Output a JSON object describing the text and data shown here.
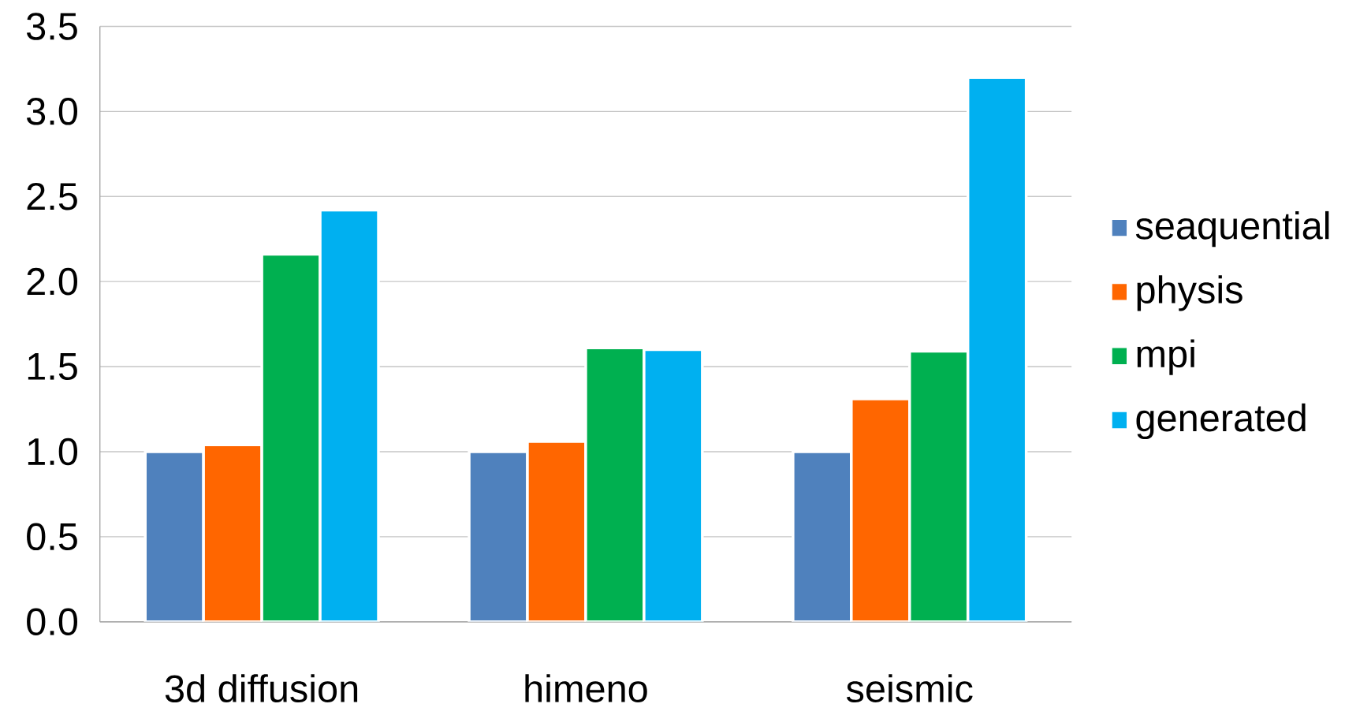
{
  "chart_data": {
    "type": "bar",
    "categories": [
      "3d diffusion",
      "himeno",
      "seismic"
    ],
    "series": [
      {
        "name": "seaquential",
        "color": "#4f81bd",
        "values": [
          1.0,
          1.0,
          1.0
        ]
      },
      {
        "name": "physis",
        "color": "#ff6600",
        "values": [
          1.04,
          1.06,
          1.31
        ]
      },
      {
        "name": "mpi",
        "color": "#00b050",
        "values": [
          2.16,
          1.61,
          1.59
        ]
      },
      {
        "name": "generated",
        "color": "#00b0f0",
        "values": [
          2.42,
          1.6,
          3.2
        ]
      }
    ],
    "ylim": [
      0,
      3.5
    ],
    "yticks": [
      {
        "value": 0,
        "label": "0.0"
      },
      {
        "value": 0.5,
        "label": "0.5"
      },
      {
        "value": 1,
        "label": "1.0"
      },
      {
        "value": 1.5,
        "label": "1.5"
      },
      {
        "value": 2,
        "label": "2.0"
      },
      {
        "value": 2.5,
        "label": "2.5"
      },
      {
        "value": 3,
        "label": "3.0"
      },
      {
        "value": 3.5,
        "label": "3.5"
      }
    ],
    "grid": "y",
    "legend": "right"
  }
}
